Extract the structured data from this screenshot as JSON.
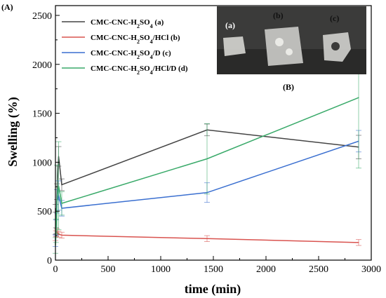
{
  "figure": {
    "panel_a_label": "(A)",
    "panel_b_label": "(B)",
    "photo_labels": [
      "(a)",
      "(b)",
      "(c)"
    ]
  },
  "chart_data": {
    "type": "line",
    "xlabel": "time (min)",
    "ylabel": "Swelling (%)",
    "xlim": [
      0,
      3000
    ],
    "ylim": [
      0,
      2600
    ],
    "xticks": [
      0,
      500,
      1000,
      1500,
      2000,
      2500,
      3000
    ],
    "yticks": [
      0,
      500,
      1000,
      1500,
      2000,
      2500
    ],
    "grid": false,
    "legend_position": "top-left",
    "series": [
      {
        "name": "CMC-CNC-H2SO4 (a)",
        "legend": {
          "pre": "CMC-CNC-H",
          "sub": "2",
          "mid": "SO",
          "sub2": "4",
          "post": " (a)"
        },
        "color": "#444444",
        "x": [
          0,
          5,
          15,
          30,
          60,
          1440,
          2880
        ],
        "y": [
          530,
          300,
          700,
          1060,
          770,
          1330,
          1155
        ],
        "err": [
          40,
          30,
          80,
          100,
          60,
          60,
          120
        ]
      },
      {
        "name": "CMC-CNC-H2SO4/HCl (b)",
        "legend": {
          "pre": "CMC-CNC-H",
          "sub": "2",
          "mid": "SO",
          "sub2": "4",
          "post": "/HCl (b)"
        },
        "color": "#d9534f",
        "x": [
          0,
          5,
          15,
          30,
          60,
          1440,
          2880
        ],
        "y": [
          230,
          270,
          290,
          265,
          255,
          220,
          180
        ],
        "err": [
          30,
          30,
          30,
          30,
          30,
          30,
          30
        ]
      },
      {
        "name": "CMC-CNC-H2SO4/D (c)",
        "legend": {
          "pre": "CMC-CNC-H",
          "sub": "2",
          "mid": "SO",
          "sub2": "4",
          "post": "/D (c)"
        },
        "color": "#3a6fd0",
        "x": [
          0,
          5,
          15,
          30,
          60,
          1440,
          2880
        ],
        "y": [
          200,
          330,
          600,
          660,
          530,
          690,
          1215
        ],
        "err": [
          60,
          80,
          120,
          150,
          80,
          100,
          110
        ]
      },
      {
        "name": "CMC-CNC-H2SO4/HCl/D (d)",
        "legend": {
          "pre": "CMC-CNC-H",
          "sub": "2",
          "mid": "SO",
          "sub2": "4",
          "post": "/HCl/D (d)"
        },
        "color": "#3aaa6a",
        "x": [
          0,
          5,
          15,
          30,
          60,
          1440,
          2880
        ],
        "y": [
          150,
          300,
          620,
          760,
          580,
          1035,
          1660
        ],
        "err": [
          80,
          120,
          350,
          450,
          120,
          360,
          720
        ]
      }
    ]
  }
}
